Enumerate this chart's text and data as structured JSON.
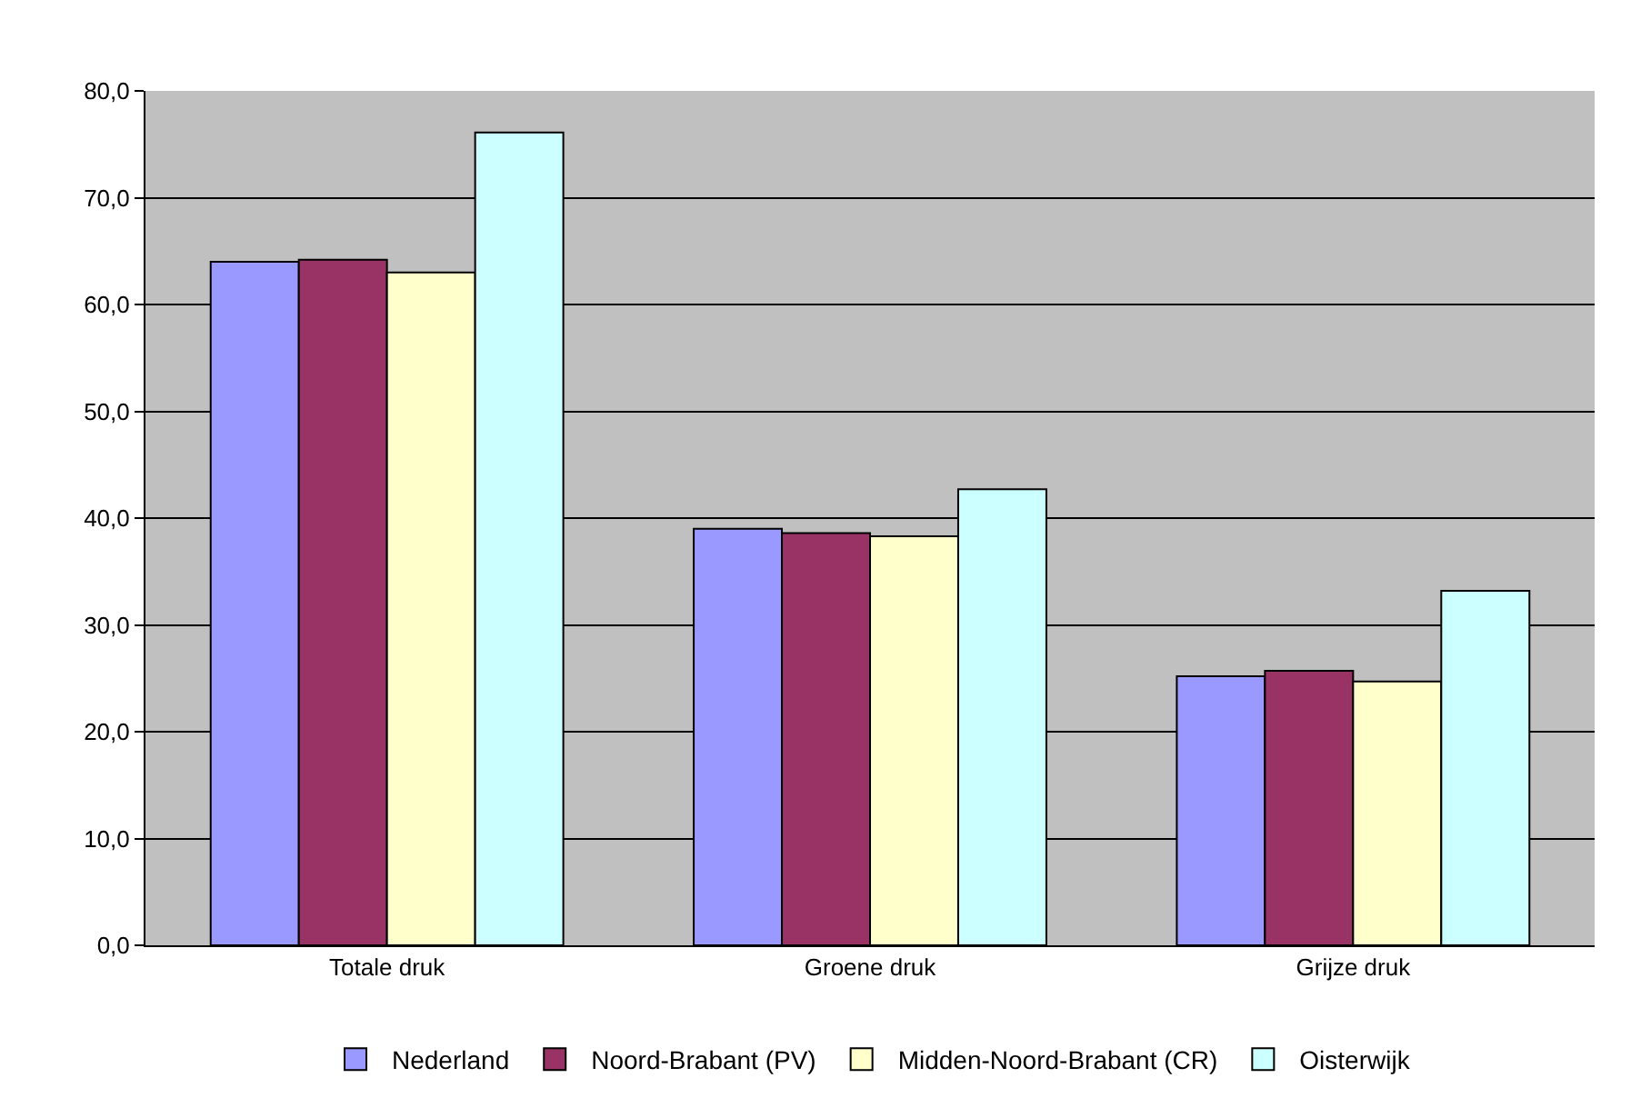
{
  "chart_data": {
    "type": "bar",
    "categories": [
      "Totale druk",
      "Groene druk",
      "Grijze druk"
    ],
    "series": [
      {
        "name": "Nederland",
        "color": "#9999ff",
        "values": [
          64.0,
          39.0,
          25.2
        ]
      },
      {
        "name": "Noord-Brabant (PV)",
        "color": "#993366",
        "values": [
          64.2,
          38.6,
          25.7
        ]
      },
      {
        "name": "Midden-Noord-Brabant (CR)",
        "color": "#ffffcc",
        "values": [
          63.0,
          38.3,
          24.7
        ]
      },
      {
        "name": "Oisterwijk",
        "color": "#ccffff",
        "values": [
          76.1,
          42.7,
          33.2
        ]
      }
    ],
    "ylim": [
      0,
      80
    ],
    "yticks": [
      {
        "value": 0,
        "label": "0,0"
      },
      {
        "value": 10,
        "label": "10,0"
      },
      {
        "value": 20,
        "label": "20,0"
      },
      {
        "value": 30,
        "label": "30,0"
      },
      {
        "value": 40,
        "label": "40,0"
      },
      {
        "value": 50,
        "label": "50,0"
      },
      {
        "value": 60,
        "label": "60,0"
      },
      {
        "value": 70,
        "label": "70,0"
      },
      {
        "value": 80,
        "label": "80,0"
      }
    ],
    "grid": "y",
    "legend": "bottom"
  }
}
